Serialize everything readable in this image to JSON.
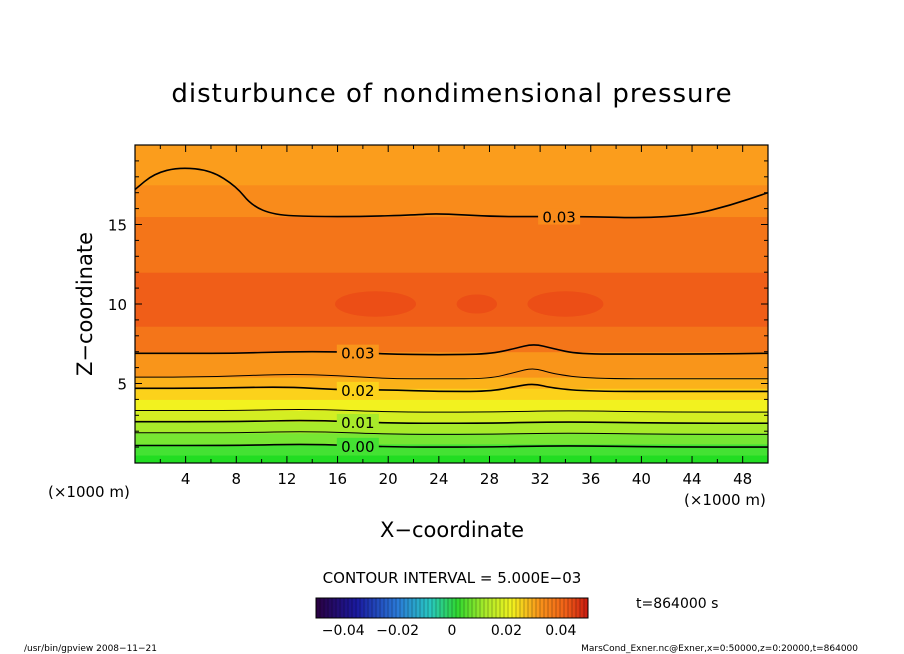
{
  "chart_data": {
    "type": "heatmap",
    "title": "disturbunce of nondimensional pressure",
    "xlabel": "X−coordinate",
    "ylabel": "Z−coordinate",
    "x_unit_left": "(×1000 m)",
    "x_unit_right": "(×1000 m)",
    "xlim": [
      0,
      50
    ],
    "ylim": [
      0,
      20
    ],
    "x_ticks": [
      4,
      8,
      12,
      16,
      20,
      24,
      28,
      32,
      36,
      40,
      44,
      48
    ],
    "y_ticks": [
      5,
      10,
      15
    ],
    "grid": false,
    "contour_interval_text": "CONTOUR INTERVAL = 5.000E−03",
    "time_text": "t=864000 s",
    "colorbar": {
      "range": [
        -0.05,
        0.05
      ],
      "tick_labels": [
        "−0.04",
        "−0.02",
        "0",
        "0.02",
        "0.04"
      ],
      "tick_values": [
        -0.04,
        -0.02,
        0,
        0.02,
        0.04
      ]
    },
    "bands": [
      {
        "z_bottom": 0.0,
        "z_top": 0.5,
        "color": "#22dd22"
      },
      {
        "z_bottom": 0.5,
        "z_top": 1.2,
        "color": "#44e233"
      },
      {
        "z_bottom": 1.2,
        "z_top": 1.9,
        "color": "#77e633"
      },
      {
        "z_bottom": 1.9,
        "z_top": 2.6,
        "color": "#a8ea2a"
      },
      {
        "z_bottom": 2.6,
        "z_top": 3.3,
        "color": "#d4ee22"
      },
      {
        "z_bottom": 3.3,
        "z_top": 4.0,
        "color": "#f2f21f"
      },
      {
        "z_bottom": 4.0,
        "z_top": 4.7,
        "color": "#fcd21b"
      },
      {
        "z_bottom": 4.7,
        "z_top": 5.4,
        "color": "#fbb21a"
      },
      {
        "z_bottom": 5.4,
        "z_top": 7.0,
        "color": "#f9951a"
      },
      {
        "z_bottom": 7.0,
        "z_top": 8.6,
        "color": "#f47519"
      },
      {
        "z_bottom": 8.6,
        "z_top": 12.0,
        "color": "#f05e18"
      },
      {
        "z_bottom": 12.0,
        "z_top": 15.5,
        "color": "#f47519"
      },
      {
        "z_bottom": 15.5,
        "z_top": 17.5,
        "color": "#f98b1b"
      },
      {
        "z_bottom": 17.5,
        "z_top": 20.0,
        "color": "#fb9d1c"
      }
    ],
    "contours": [
      {
        "label": "0.03",
        "label_x": 33.5,
        "points": [
          [
            0,
            17.2
          ],
          [
            1.5,
            18.2
          ],
          [
            3.5,
            18.6
          ],
          [
            6,
            18.4
          ],
          [
            8,
            17.4
          ],
          [
            9.2,
            16.2
          ],
          [
            11,
            15.6
          ],
          [
            14,
            15.5
          ],
          [
            18,
            15.5
          ],
          [
            22,
            15.6
          ],
          [
            24,
            15.7
          ],
          [
            28,
            15.5
          ],
          [
            32,
            15.5
          ],
          [
            36,
            15.5
          ],
          [
            40,
            15.4
          ],
          [
            44,
            15.6
          ],
          [
            47,
            16.2
          ],
          [
            50,
            17.0
          ]
        ]
      },
      {
        "label": "0.03",
        "label_x": 17.6,
        "points": [
          [
            0,
            6.9
          ],
          [
            4,
            6.9
          ],
          [
            8,
            6.9
          ],
          [
            12,
            7.0
          ],
          [
            16,
            7.0
          ],
          [
            20,
            6.85
          ],
          [
            24,
            6.8
          ],
          [
            28,
            6.85
          ],
          [
            30,
            7.2
          ],
          [
            31.5,
            7.5
          ],
          [
            33,
            7.2
          ],
          [
            35,
            6.85
          ],
          [
            40,
            6.85
          ],
          [
            45,
            6.85
          ],
          [
            50,
            6.9
          ]
        ]
      },
      {
        "label": "",
        "label_x": null,
        "points": [
          [
            0,
            5.4
          ],
          [
            6,
            5.4
          ],
          [
            12,
            5.6
          ],
          [
            16,
            5.5
          ],
          [
            20,
            5.3
          ],
          [
            24,
            5.3
          ],
          [
            28,
            5.3
          ],
          [
            30,
            5.7
          ],
          [
            31.5,
            6.0
          ],
          [
            33,
            5.6
          ],
          [
            36,
            5.3
          ],
          [
            44,
            5.3
          ],
          [
            50,
            5.3
          ]
        ]
      },
      {
        "label": "0.02",
        "label_x": 17.6,
        "points": [
          [
            0,
            4.7
          ],
          [
            6,
            4.7
          ],
          [
            12,
            4.8
          ],
          [
            16,
            4.6
          ],
          [
            20,
            4.6
          ],
          [
            24,
            4.5
          ],
          [
            28,
            4.5
          ],
          [
            30,
            4.8
          ],
          [
            31.5,
            5.0
          ],
          [
            33,
            4.7
          ],
          [
            36,
            4.5
          ],
          [
            44,
            4.5
          ],
          [
            50,
            4.5
          ]
        ]
      },
      {
        "label": "",
        "label_x": null,
        "points": [
          [
            0,
            3.3
          ],
          [
            8,
            3.3
          ],
          [
            14,
            3.4
          ],
          [
            20,
            3.2
          ],
          [
            28,
            3.2
          ],
          [
            34,
            3.3
          ],
          [
            42,
            3.2
          ],
          [
            50,
            3.2
          ]
        ]
      },
      {
        "label": "0.01",
        "label_x": 17.6,
        "points": [
          [
            0,
            2.6
          ],
          [
            8,
            2.6
          ],
          [
            14,
            2.7
          ],
          [
            20,
            2.5
          ],
          [
            28,
            2.5
          ],
          [
            34,
            2.6
          ],
          [
            42,
            2.5
          ],
          [
            50,
            2.5
          ]
        ]
      },
      {
        "label": "",
        "label_x": null,
        "points": [
          [
            0,
            1.9
          ],
          [
            8,
            1.9
          ],
          [
            14,
            2.0
          ],
          [
            20,
            1.8
          ],
          [
            28,
            1.8
          ],
          [
            34,
            1.9
          ],
          [
            42,
            1.8
          ],
          [
            50,
            1.8
          ]
        ]
      },
      {
        "label": "0.00",
        "label_x": 17.6,
        "points": [
          [
            0,
            1.1
          ],
          [
            8,
            1.1
          ],
          [
            14,
            1.2
          ],
          [
            20,
            1.0
          ],
          [
            28,
            1.0
          ],
          [
            34,
            1.1
          ],
          [
            42,
            1.0
          ],
          [
            50,
            1.0
          ]
        ]
      }
    ],
    "blobs": [
      {
        "cx": 19,
        "cy": 10.0,
        "rx": 3.2,
        "ry": 0.8,
        "color": "#ec4e16"
      },
      {
        "cx": 27,
        "cy": 10.0,
        "rx": 1.6,
        "ry": 0.6,
        "color": "#ec4e16"
      },
      {
        "cx": 34,
        "cy": 10.0,
        "rx": 3.0,
        "ry": 0.8,
        "color": "#ec4e16"
      }
    ]
  },
  "footer": {
    "left": "/usr/bin/gpview   2008−11−21",
    "right": "MarsCond_Exner.nc@Exner,x=0:50000,z=0:20000,t=864000"
  },
  "colors": {
    "frame": "#000000",
    "contour": "#000000"
  }
}
